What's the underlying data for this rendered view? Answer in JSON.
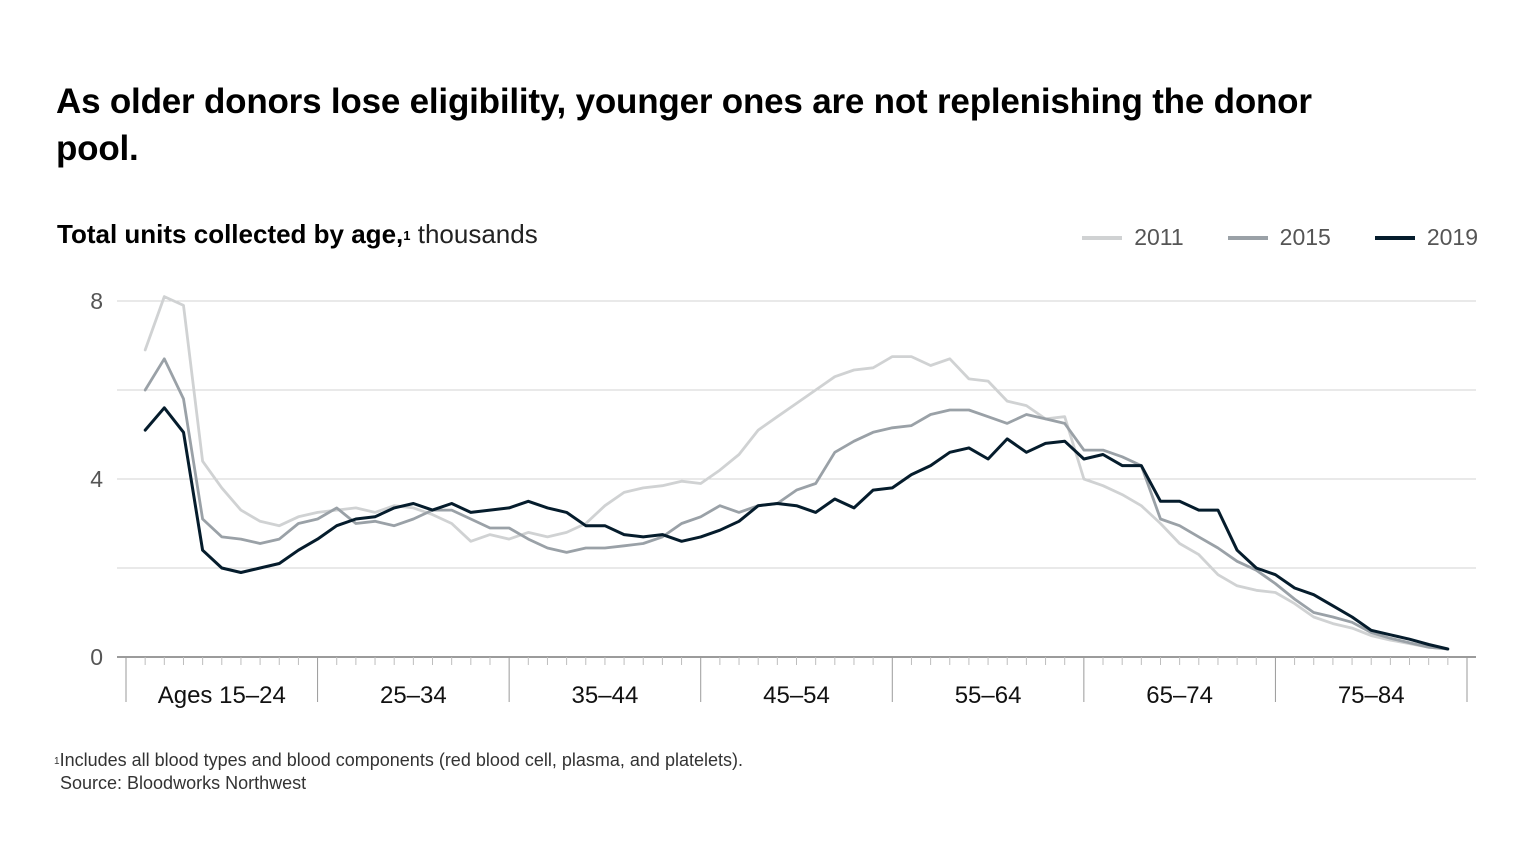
{
  "title": "As older donors lose eligibility, younger ones are not replenishing the donor pool.",
  "subtitle": {
    "bold": "Total units collected by age,",
    "note_mark": "1",
    "unit": " thousands"
  },
  "legend": [
    {
      "name": "2011",
      "color": "#d0d2d3"
    },
    {
      "name": "2015",
      "color": "#9aa1a7"
    },
    {
      "name": "2019",
      "color": "#051c2c"
    }
  ],
  "footnote": {
    "mark": "1",
    "text": "Includes all blood types and blood components (red blood cell, plasma, and platelets).",
    "source": "Source: Bloodworks Northwest"
  },
  "chart_data": {
    "type": "line",
    "title": "Total units collected by age, thousands",
    "xlabel": "",
    "ylabel": "thousands",
    "ylim": [
      0,
      8
    ],
    "yticks": [
      0,
      4,
      8
    ],
    "grid": true,
    "legend_position": "top-right",
    "x_range": [
      15,
      85
    ],
    "x_groups": [
      "Ages 15–24",
      "25–34",
      "35–44",
      "45–54",
      "55–64",
      "65–74",
      "75–84"
    ],
    "x": [
      16,
      17,
      18,
      19,
      20,
      21,
      22,
      23,
      24,
      25,
      26,
      27,
      28,
      29,
      30,
      31,
      32,
      33,
      34,
      35,
      36,
      37,
      38,
      39,
      40,
      41,
      42,
      43,
      44,
      45,
      46,
      47,
      48,
      49,
      50,
      51,
      52,
      53,
      54,
      55,
      56,
      57,
      58,
      59,
      60,
      61,
      62,
      63,
      64,
      65,
      66,
      67,
      68,
      69,
      70,
      71,
      72,
      73,
      74,
      75,
      76,
      77,
      78,
      79,
      80,
      81,
      82,
      83,
      84
    ],
    "series": [
      {
        "name": "2011",
        "color": "#d0d2d3",
        "values": [
          6.9,
          8.1,
          7.9,
          4.4,
          3.8,
          3.3,
          3.05,
          2.95,
          3.15,
          3.25,
          3.3,
          3.35,
          3.25,
          3.4,
          3.35,
          3.2,
          3.0,
          2.6,
          2.75,
          2.65,
          2.8,
          2.7,
          2.8,
          3.0,
          3.4,
          3.7,
          3.8,
          3.85,
          3.95,
          3.9,
          4.2,
          4.55,
          5.1,
          5.4,
          5.7,
          6.0,
          6.3,
          6.45,
          6.5,
          6.75,
          6.75,
          6.55,
          6.7,
          6.25,
          6.2,
          5.75,
          5.65,
          5.35,
          5.4,
          4.0,
          3.85,
          3.65,
          3.4,
          3.0,
          2.55,
          2.3,
          1.85,
          1.6,
          1.5,
          1.45,
          1.2,
          0.9,
          0.75,
          0.65,
          0.48,
          0.38,
          0.3,
          0.22,
          0.18
        ]
      },
      {
        "name": "2015",
        "color": "#9aa1a7",
        "values": [
          6.0,
          6.7,
          5.8,
          3.1,
          2.7,
          2.65,
          2.55,
          2.65,
          3.0,
          3.1,
          3.35,
          3.0,
          3.05,
          2.95,
          3.1,
          3.3,
          3.3,
          3.1,
          2.9,
          2.9,
          2.65,
          2.45,
          2.35,
          2.45,
          2.45,
          2.5,
          2.55,
          2.7,
          3.0,
          3.15,
          3.4,
          3.25,
          3.4,
          3.45,
          3.75,
          3.9,
          4.6,
          4.85,
          5.05,
          5.15,
          5.2,
          5.45,
          5.55,
          5.55,
          5.4,
          5.25,
          5.45,
          5.35,
          5.25,
          4.65,
          4.65,
          4.5,
          4.3,
          3.1,
          2.95,
          2.7,
          2.45,
          2.15,
          1.95,
          1.65,
          1.3,
          1.0,
          0.9,
          0.78,
          0.55,
          0.42,
          0.32,
          0.22,
          0.18
        ]
      },
      {
        "name": "2019",
        "color": "#051c2c",
        "values": [
          5.1,
          5.6,
          5.05,
          2.4,
          2.0,
          1.9,
          2.0,
          2.1,
          2.4,
          2.65,
          2.95,
          3.1,
          3.15,
          3.35,
          3.45,
          3.3,
          3.45,
          3.25,
          3.3,
          3.35,
          3.5,
          3.35,
          3.25,
          2.95,
          2.95,
          2.75,
          2.7,
          2.75,
          2.6,
          2.7,
          2.85,
          3.05,
          3.4,
          3.45,
          3.4,
          3.25,
          3.55,
          3.35,
          3.75,
          3.8,
          4.1,
          4.3,
          4.6,
          4.7,
          4.45,
          4.9,
          4.6,
          4.8,
          4.85,
          4.45,
          4.55,
          4.3,
          4.3,
          3.5,
          3.5,
          3.3,
          3.3,
          2.4,
          2.0,
          1.85,
          1.55,
          1.4,
          1.15,
          0.9,
          0.6,
          0.5,
          0.4,
          0.28,
          0.18
        ]
      }
    ]
  }
}
